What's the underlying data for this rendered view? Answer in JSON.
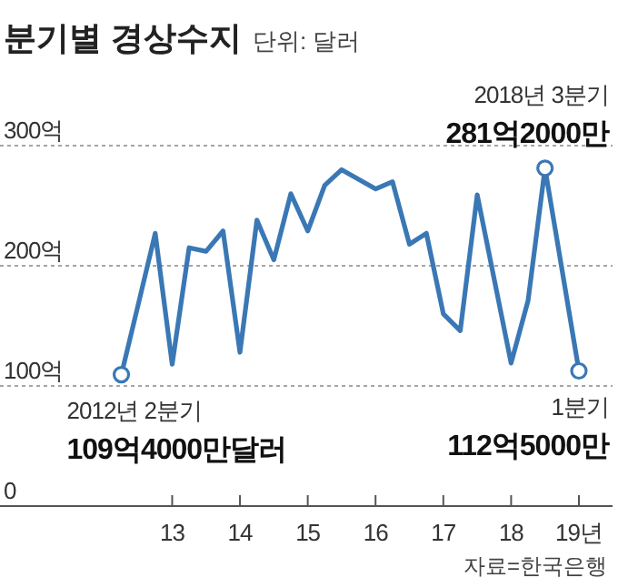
{
  "chart_data": {
    "type": "line",
    "title": "분기별 경상수지",
    "subtitle": "단위: 달러",
    "x": [
      12.25,
      12.5,
      12.75,
      13,
      13.25,
      13.5,
      13.75,
      14,
      14.25,
      14.5,
      14.75,
      15,
      15.25,
      15.5,
      15.75,
      16,
      16.25,
      16.5,
      16.75,
      17,
      17.25,
      17.5,
      17.75,
      18,
      18.25,
      18.5,
      18.75,
      19
    ],
    "series": [
      {
        "color": "#3a78b5",
        "values": [
          109.4,
          168,
          227,
          118,
          215,
          212,
          229,
          128,
          238,
          205,
          260,
          229,
          267,
          280,
          272,
          264,
          270,
          218,
          227,
          160,
          146,
          259,
          189,
          119,
          171,
          281.2,
          197,
          112.5
        ]
      }
    ],
    "xlim": [
      10.46,
      19.55
    ],
    "ylim": [
      0,
      300
    ],
    "xticks": [
      13,
      14,
      15,
      16,
      17,
      18,
      {
        "value": 19,
        "label": "19년"
      }
    ],
    "yticks": [
      {
        "value": 0,
        "label": "0"
      },
      {
        "value": 100,
        "label": "100억"
      },
      {
        "value": 200,
        "label": "200억"
      },
      {
        "value": 300,
        "label": "300억"
      }
    ],
    "grid": "y",
    "marker": "none",
    "line_style": "solid",
    "annotations": [
      {
        "text": "2012년 2분기\n109억4000만달러",
        "x": 12.25,
        "y": 109.4
      },
      {
        "text": "2018년 3분기\n281억2000만",
        "x": 18.5,
        "y": 281.2
      },
      {
        "text": "1분기\n112억5000만",
        "x": 19,
        "y": 112.5
      },
      "자료=한국은행"
    ]
  }
}
